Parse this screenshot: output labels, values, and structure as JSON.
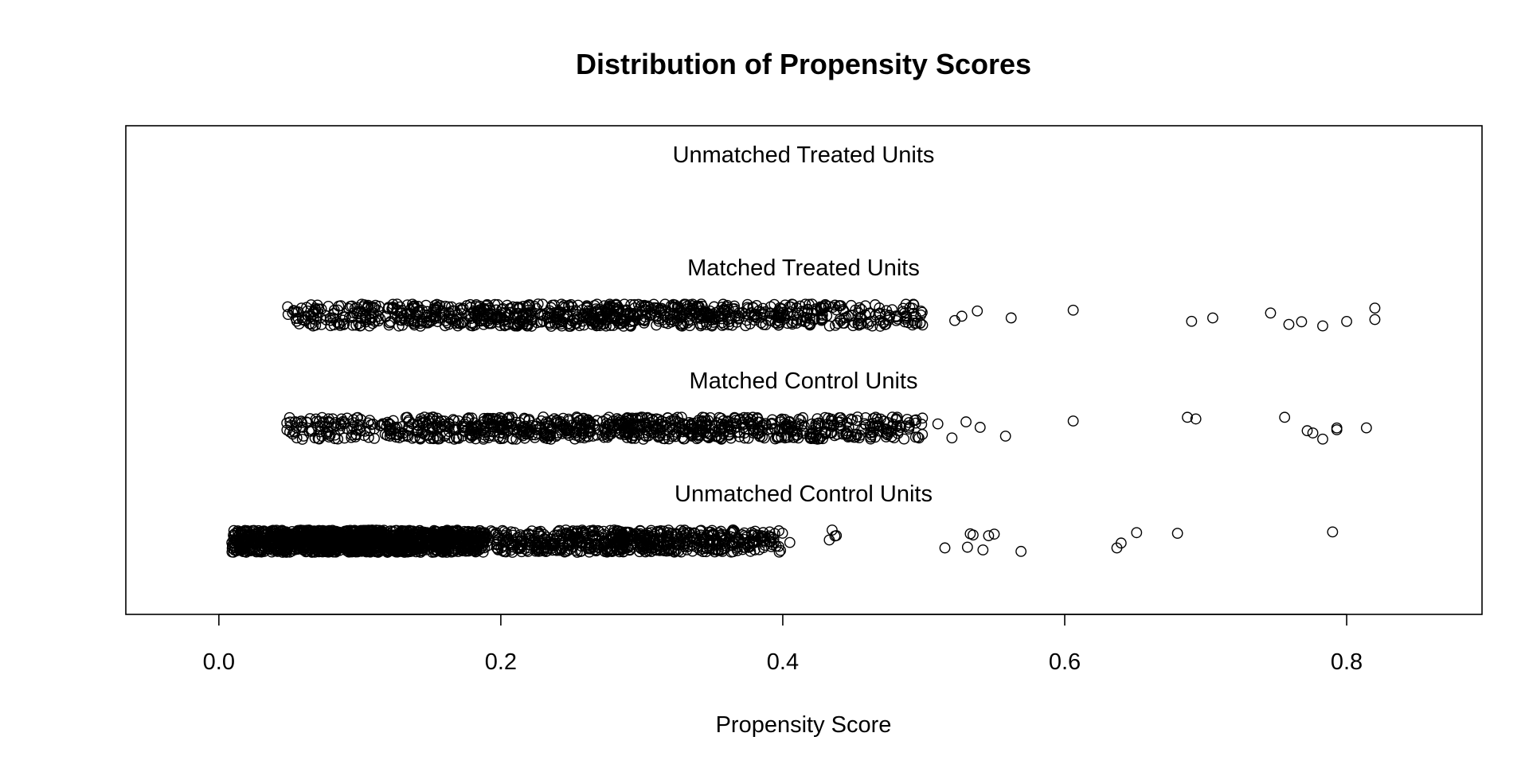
{
  "chart_data": {
    "type": "scatter",
    "title": "Distribution of Propensity Scores",
    "xlabel": "Propensity Score",
    "xlim": [
      -0.066,
      0.896
    ],
    "x_ticks": [
      0.0,
      0.2,
      0.4,
      0.6,
      0.8
    ],
    "x_tick_labels": [
      "0.0",
      "0.2",
      "0.4",
      "0.6",
      "0.8"
    ],
    "grid": false,
    "legend": "none",
    "marker": "open-circle",
    "jitter": true,
    "point_color": "#000000",
    "groups": [
      {
        "name": "Unmatched Treated Units",
        "label": "Unmatched Treated Units",
        "row": 4,
        "dense_ranges": [],
        "points": []
      },
      {
        "name": "Matched Treated Units",
        "label": "Matched Treated Units",
        "row": 3,
        "dense_ranges": [
          {
            "from": 0.048,
            "to": 0.5,
            "count": 950
          }
        ],
        "points": [
          0.522,
          0.527,
          0.538,
          0.562,
          0.606,
          0.69,
          0.705,
          0.746,
          0.759,
          0.768,
          0.783,
          0.8,
          0.82,
          0.82
        ]
      },
      {
        "name": "Matched Control Units",
        "label": "Matched Control Units",
        "row": 2,
        "dense_ranges": [
          {
            "from": 0.048,
            "to": 0.5,
            "count": 950
          }
        ],
        "points": [
          0.51,
          0.52,
          0.53,
          0.54,
          0.558,
          0.606,
          0.687,
          0.693,
          0.756,
          0.772,
          0.776,
          0.783,
          0.793,
          0.793,
          0.814
        ]
      },
      {
        "name": "Unmatched Control Units",
        "label": "Unmatched Control Units",
        "row": 1,
        "dense_ranges": [
          {
            "from": 0.009,
            "to": 0.19,
            "count": 1500
          },
          {
            "from": 0.19,
            "to": 0.4,
            "count": 650
          }
        ],
        "points": [
          0.405,
          0.433,
          0.435,
          0.437,
          0.438,
          0.515,
          0.531,
          0.533,
          0.535,
          0.546,
          0.55,
          0.542,
          0.569,
          0.637,
          0.64,
          0.651,
          0.68,
          0.79
        ]
      }
    ]
  }
}
